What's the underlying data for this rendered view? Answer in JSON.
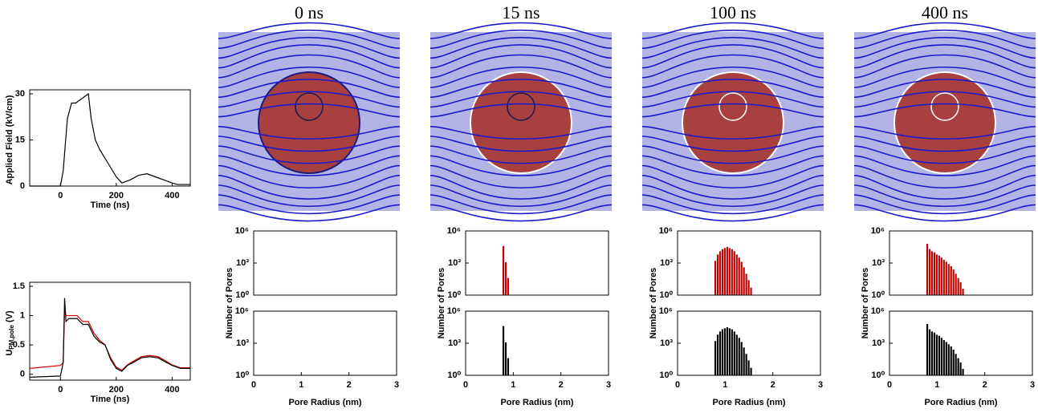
{
  "chart_data": [
    {
      "type": "line",
      "ylabel": "Applied Field (kV/cm)",
      "xlabel": "Time (ns)",
      "x": [
        -110,
        0,
        10,
        25,
        40,
        55,
        70,
        85,
        100,
        110,
        125,
        140,
        160,
        180,
        200,
        220,
        250,
        280,
        310,
        340,
        370,
        400,
        420,
        465
      ],
      "series": [
        {
          "color": "#000000",
          "values": [
            0,
            0,
            5,
            22,
            27,
            27,
            28,
            29,
            30,
            22,
            15,
            12,
            9,
            6,
            3,
            1,
            2,
            3.5,
            4,
            3,
            2,
            1,
            0.5,
            0.5
          ]
        }
      ],
      "xlim": [
        -110,
        465
      ],
      "xticks": [
        0,
        200,
        400
      ],
      "ylim": [
        0,
        30
      ],
      "yticks": [
        0,
        15,
        30
      ]
    },
    {
      "type": "line",
      "ylabel": "U",
      "ylabel_subscript": "PM,pole",
      "ylabel_unit": "(V)",
      "xlabel": "Time (ns)",
      "x": [
        -110,
        0,
        10,
        15,
        20,
        30,
        60,
        80,
        100,
        120,
        140,
        160,
        180,
        200,
        220,
        240,
        260,
        290,
        320,
        350,
        380,
        400,
        430,
        465
      ],
      "series": [
        {
          "color": "#d00000",
          "values": [
            0.1,
            0.15,
            0.2,
            1.1,
            1.0,
            1.0,
            1.0,
            0.9,
            0.9,
            0.7,
            0.58,
            0.5,
            0.28,
            0.12,
            0.07,
            0.16,
            0.22,
            0.3,
            0.32,
            0.3,
            0.22,
            0.16,
            0.11,
            0.11
          ]
        },
        {
          "color": "#000000",
          "values": [
            -0.05,
            -0.03,
            0.2,
            1.3,
            0.9,
            0.95,
            0.95,
            0.85,
            0.85,
            0.65,
            0.55,
            0.5,
            0.25,
            0.1,
            0.05,
            0.15,
            0.2,
            0.28,
            0.3,
            0.28,
            0.2,
            0.15,
            0.1,
            0.1
          ]
        }
      ],
      "xlim": [
        -110,
        465
      ],
      "xticks": [
        0,
        200,
        400
      ],
      "ylim": [
        -0.1,
        1.5
      ],
      "yticks": [
        0,
        0.5,
        1,
        1.5
      ]
    },
    {
      "type": "histogram",
      "title": "0 ns",
      "ylabel": "Number of Pores",
      "color": "#c00000",
      "log_y": true,
      "xlim": [
        0,
        3
      ],
      "ylim": [
        1,
        1000000
      ],
      "yticks": [
        {
          "value": 1,
          "label": "10⁰"
        },
        {
          "value": 1000,
          "label": "10³"
        },
        {
          "value": 1000000,
          "label": "10⁶"
        }
      ]
    },
    {
      "type": "histogram",
      "xlabel": "Pore Radius (nm)",
      "color": "#000000",
      "log_y": true,
      "xlim": [
        0,
        3
      ],
      "xticks": [
        0,
        1,
        2,
        3
      ],
      "ylim": [
        1,
        1000000
      ],
      "yticks": [
        {
          "value": 1,
          "label": "10⁰"
        },
        {
          "value": 1000,
          "label": "10³"
        },
        {
          "value": 1000000,
          "label": "10⁶"
        }
      ]
    },
    {
      "type": "histogram",
      "title": "15 ns",
      "ylabel": "Number of Pores",
      "color": "#c00000",
      "log_y": true,
      "bins": [
        0.775,
        0.825,
        0.875,
        0.925
      ],
      "counts": [
        40000,
        1200,
        40
      ],
      "xlim": [
        0,
        3
      ],
      "ylim": [
        1,
        1000000
      ],
      "yticks": [
        {
          "value": 1,
          "label": "10⁰"
        },
        {
          "value": 1000,
          "label": "10³"
        },
        {
          "value": 1000000,
          "label": "10⁶"
        }
      ]
    },
    {
      "type": "histogram",
      "xlabel": "Pore Radius (nm)",
      "color": "#000000",
      "log_y": true,
      "bins": [
        0.775,
        0.825,
        0.875,
        0.925
      ],
      "counts": [
        40000,
        1200,
        40
      ],
      "xlim": [
        0,
        3
      ],
      "xticks": [
        0,
        1,
        2,
        3
      ],
      "ylim": [
        1,
        1000000
      ],
      "yticks": [
        {
          "value": 1,
          "label": "10⁰"
        },
        {
          "value": 1000,
          "label": "10³"
        },
        {
          "value": 1000000,
          "label": "10⁶"
        }
      ]
    },
    {
      "type": "histogram",
      "title": "100 ns",
      "ylabel": "Number of Pores",
      "color": "#c00000",
      "log_y": true,
      "bins": [
        0.775,
        0.825,
        0.875,
        0.925,
        0.975,
        1.025,
        1.075,
        1.125,
        1.175,
        1.225,
        1.275,
        1.325,
        1.375,
        1.425,
        1.475,
        1.525,
        1.575
      ],
      "counts": [
        1600,
        6300,
        12600,
        20000,
        25000,
        32000,
        25000,
        20000,
        12600,
        6300,
        3200,
        1300,
        400,
        100,
        25,
        5
      ],
      "xlim": [
        0,
        3
      ],
      "ylim": [
        1,
        1000000
      ],
      "yticks": [
        {
          "value": 1,
          "label": "10⁰"
        },
        {
          "value": 1000,
          "label": "10³"
        },
        {
          "value": 1000000,
          "label": "10⁶"
        }
      ]
    },
    {
      "type": "histogram",
      "xlabel": "Pore Radius (nm)",
      "color": "#000000",
      "log_y": true,
      "bins": [
        0.775,
        0.825,
        0.875,
        0.925,
        0.975,
        1.025,
        1.075,
        1.125,
        1.175,
        1.225,
        1.275,
        1.325,
        1.375,
        1.425,
        1.475,
        1.525,
        1.575
      ],
      "counts": [
        1600,
        6300,
        12600,
        20000,
        25000,
        32000,
        25000,
        20000,
        12600,
        6300,
        3200,
        1300,
        400,
        100,
        25,
        5
      ],
      "xlim": [
        0,
        3
      ],
      "xticks": [
        0,
        1,
        2,
        3
      ],
      "ylim": [
        1,
        1000000
      ],
      "yticks": [
        {
          "value": 1,
          "label": "10⁰"
        },
        {
          "value": 1000,
          "label": "10³"
        },
        {
          "value": 1000000,
          "label": "10⁶"
        }
      ]
    },
    {
      "type": "histogram",
      "title": "400 ns",
      "ylabel": "Number of Pores",
      "color": "#c00000",
      "log_y": true,
      "bins": [
        0.775,
        0.825,
        0.875,
        0.925,
        0.975,
        1.025,
        1.075,
        1.125,
        1.175,
        1.225,
        1.275,
        1.325,
        1.375,
        1.425,
        1.475,
        1.525,
        1.575
      ],
      "counts": [
        63000,
        20000,
        12600,
        10000,
        6300,
        5000,
        3200,
        2000,
        1300,
        800,
        500,
        250,
        100,
        40,
        16,
        4
      ],
      "xlim": [
        0,
        3
      ],
      "ylim": [
        1,
        1000000
      ],
      "yticks": [
        {
          "value": 1,
          "label": "10⁰"
        },
        {
          "value": 1000,
          "label": "10³"
        },
        {
          "value": 1000000,
          "label": "10⁶"
        }
      ]
    },
    {
      "type": "histogram",
      "xlabel": "Pore Radius (nm)",
      "color": "#000000",
      "log_y": true,
      "bins": [
        0.775,
        0.825,
        0.875,
        0.925,
        0.975,
        1.025,
        1.075,
        1.125,
        1.175,
        1.225,
        1.275,
        1.325,
        1.375,
        1.425,
        1.475,
        1.525,
        1.575
      ],
      "counts": [
        63000,
        20000,
        12600,
        10000,
        6300,
        5000,
        3200,
        2000,
        1300,
        800,
        500,
        250,
        100,
        40,
        16,
        4
      ],
      "xlim": [
        0,
        3
      ],
      "xticks": [
        0,
        1,
        2,
        3
      ],
      "ylim": [
        1,
        1000000
      ],
      "yticks": [
        {
          "value": 1,
          "label": "10⁰"
        },
        {
          "value": 1000,
          "label": "10³"
        },
        {
          "value": 1000000,
          "label": "10⁶"
        }
      ]
    }
  ]
}
